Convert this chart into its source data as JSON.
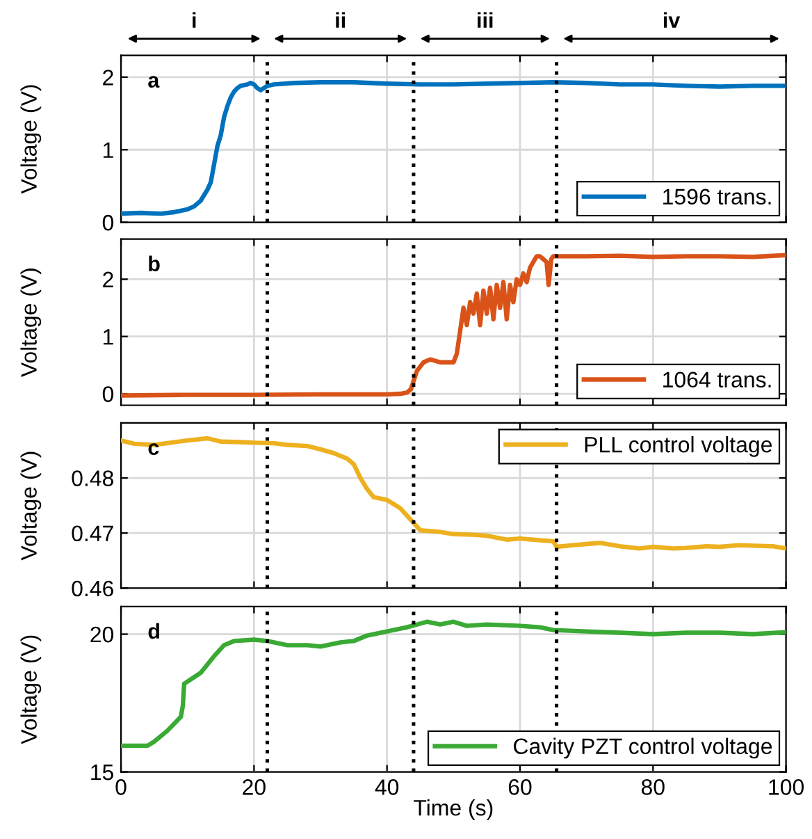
{
  "chart_data": [
    {
      "type": "line",
      "ylabel": "Voltage (V)",
      "xlim": [
        0,
        100
      ],
      "ylim": [
        0,
        2.3
      ],
      "xticks": [
        0,
        20,
        40,
        60,
        80,
        100
      ],
      "yticks": [
        0,
        1,
        2
      ],
      "grid": true,
      "legend": "bottom right",
      "tick_labels": "y",
      "line_style": "solid",
      "marker": "none",
      "annotations": [
        "a",
        "i",
        "ii",
        "iii",
        "iv"
      ],
      "ref_lines": [
        {
          "axis": "x",
          "value": 22,
          "color": "#000000",
          "line_style": "dotted"
        },
        {
          "axis": "x",
          "value": 44,
          "color": "#000000",
          "line_style": "dotted"
        },
        {
          "axis": "x",
          "value": 65.5,
          "color": "#000000",
          "line_style": "dotted"
        }
      ],
      "series": [
        {
          "name": "1596 trans.",
          "color": "#0072bd",
          "x": [
            0,
            3,
            6,
            8,
            10,
            11,
            12,
            13,
            13.5,
            14,
            14.5,
            15,
            15.5,
            16,
            16.5,
            17,
            17.5,
            18,
            19,
            19.5,
            20,
            20.5,
            21,
            22,
            23,
            26,
            30,
            35,
            40,
            45,
            50,
            55,
            60,
            65,
            70,
            75,
            80,
            85,
            90,
            95,
            100
          ],
          "values": [
            0.12,
            0.13,
            0.12,
            0.14,
            0.18,
            0.22,
            0.3,
            0.45,
            0.55,
            0.8,
            1.05,
            1.2,
            1.45,
            1.6,
            1.72,
            1.8,
            1.85,
            1.88,
            1.9,
            1.92,
            1.9,
            1.85,
            1.82,
            1.88,
            1.9,
            1.92,
            1.93,
            1.93,
            1.91,
            1.9,
            1.9,
            1.91,
            1.92,
            1.93,
            1.92,
            1.9,
            1.9,
            1.88,
            1.87,
            1.88,
            1.88
          ]
        }
      ]
    },
    {
      "type": "line",
      "ylabel": "Voltage (V)",
      "xlim": [
        0,
        100
      ],
      "ylim": [
        -0.2,
        2.7
      ],
      "xticks": [
        0,
        20,
        40,
        60,
        80,
        100
      ],
      "yticks": [
        0,
        1,
        2
      ],
      "grid": true,
      "legend": "bottom right",
      "tick_labels": "y",
      "line_style": "solid",
      "marker": "none",
      "annotations": [
        "b"
      ],
      "ref_lines": [
        {
          "axis": "x",
          "value": 22,
          "color": "#000000",
          "line_style": "dotted"
        },
        {
          "axis": "x",
          "value": 44,
          "color": "#000000",
          "line_style": "dotted"
        },
        {
          "axis": "x",
          "value": 65.5,
          "color": "#000000",
          "line_style": "dotted"
        }
      ],
      "series": [
        {
          "name": "1064 trans.",
          "color": "#d95319",
          "x": [
            0,
            10,
            20,
            30,
            40,
            42,
            43,
            43.6,
            44.5,
            45.5,
            46.5,
            48,
            50,
            50.5,
            51,
            51.5,
            52,
            52.5,
            53,
            53.5,
            54,
            54.5,
            55,
            55.5,
            56,
            56.5,
            57,
            57.5,
            58,
            58.5,
            59,
            59.5,
            60,
            60.5,
            61,
            61.5,
            62,
            62.5,
            63,
            63.5,
            64,
            64.3,
            64.7,
            65,
            66,
            70,
            75,
            80,
            85,
            90,
            95,
            100
          ],
          "values": [
            -0.03,
            -0.02,
            -0.02,
            -0.01,
            -0.01,
            0.0,
            0.02,
            0.08,
            0.4,
            0.55,
            0.6,
            0.55,
            0.55,
            0.7,
            1.1,
            1.5,
            1.2,
            1.6,
            1.4,
            1.75,
            1.2,
            1.8,
            1.4,
            1.85,
            1.3,
            1.9,
            1.5,
            1.95,
            1.3,
            1.9,
            1.6,
            2.0,
            1.9,
            2.1,
            1.95,
            2.2,
            2.3,
            2.4,
            2.4,
            2.35,
            2.3,
            1.9,
            2.35,
            2.4,
            2.4,
            2.4,
            2.41,
            2.39,
            2.4,
            2.4,
            2.39,
            2.42
          ]
        }
      ]
    },
    {
      "type": "line",
      "ylabel": "Voltage (V)",
      "xlim": [
        0,
        100
      ],
      "ylim": [
        0.46,
        0.49
      ],
      "xticks": [
        0,
        20,
        40,
        60,
        80,
        100
      ],
      "yticks": [
        0.46,
        0.47,
        0.48
      ],
      "grid": true,
      "legend": "top right",
      "tick_labels": "y",
      "line_style": "solid",
      "marker": "none",
      "annotations": [
        "c"
      ],
      "ref_lines": [
        {
          "axis": "x",
          "value": 22,
          "color": "#000000",
          "line_style": "dotted"
        },
        {
          "axis": "x",
          "value": 44,
          "color": "#000000",
          "line_style": "dotted"
        },
        {
          "axis": "x",
          "value": 65.5,
          "color": "#000000",
          "line_style": "dotted"
        }
      ],
      "series": [
        {
          "name": "PLL control voltage",
          "color": "#edb120",
          "x": [
            0,
            2,
            5,
            8,
            10,
            13,
            15,
            18,
            20,
            23,
            25,
            28,
            30,
            32,
            34,
            35,
            36,
            37,
            38,
            40,
            42,
            43.5,
            45,
            48,
            50,
            53,
            55,
            58,
            60,
            62,
            65,
            65.5,
            68,
            70,
            72,
            75,
            78,
            80,
            83,
            85,
            88,
            90,
            93,
            95,
            98,
            100
          ],
          "values": [
            0.4868,
            0.4862,
            0.486,
            0.4865,
            0.4868,
            0.4872,
            0.4866,
            0.4865,
            0.4864,
            0.4863,
            0.486,
            0.4858,
            0.4852,
            0.4845,
            0.4835,
            0.4825,
            0.48,
            0.478,
            0.4765,
            0.476,
            0.4745,
            0.4725,
            0.4705,
            0.4702,
            0.4698,
            0.4697,
            0.4695,
            0.4688,
            0.469,
            0.4688,
            0.4685,
            0.4675,
            0.4678,
            0.468,
            0.4682,
            0.4676,
            0.4672,
            0.4675,
            0.4672,
            0.4673,
            0.4676,
            0.4675,
            0.4678,
            0.4677,
            0.4676,
            0.4672
          ]
        }
      ]
    },
    {
      "type": "line",
      "xlabel": "Time (s)",
      "ylabel": "Voltage (V)",
      "xlim": [
        0,
        100
      ],
      "ylim": [
        15,
        21
      ],
      "xticks": [
        0,
        20,
        40,
        60,
        80,
        100
      ],
      "yticks": [
        15,
        20
      ],
      "grid": true,
      "legend": "bottom right",
      "line_style": "solid",
      "marker": "none",
      "annotations": [
        "d"
      ],
      "ref_lines": [
        {
          "axis": "x",
          "value": 22,
          "color": "#000000",
          "line_style": "dotted"
        },
        {
          "axis": "x",
          "value": 44,
          "color": "#000000",
          "line_style": "dotted"
        },
        {
          "axis": "x",
          "value": 65.5,
          "color": "#000000",
          "line_style": "dotted"
        }
      ],
      "series": [
        {
          "name": "Cavity PZT control voltage",
          "color": "#3aaa35",
          "x": [
            0,
            4,
            5,
            7,
            9,
            9.3,
            9.5,
            12,
            14,
            15.5,
            17,
            20,
            22,
            25,
            28,
            30,
            33,
            35,
            37,
            40,
            43,
            46,
            48,
            50,
            52,
            55,
            60,
            63,
            65,
            70,
            75,
            80,
            85,
            90,
            95,
            100
          ],
          "values": [
            15.95,
            15.95,
            16.1,
            16.5,
            17.0,
            17.4,
            18.2,
            18.6,
            19.2,
            19.6,
            19.75,
            19.8,
            19.75,
            19.6,
            19.6,
            19.55,
            19.7,
            19.75,
            19.95,
            20.1,
            20.25,
            20.45,
            20.35,
            20.45,
            20.3,
            20.35,
            20.3,
            20.25,
            20.15,
            20.1,
            20.05,
            20.0,
            20.05,
            20.05,
            20.0,
            20.07
          ]
        }
      ]
    }
  ]
}
